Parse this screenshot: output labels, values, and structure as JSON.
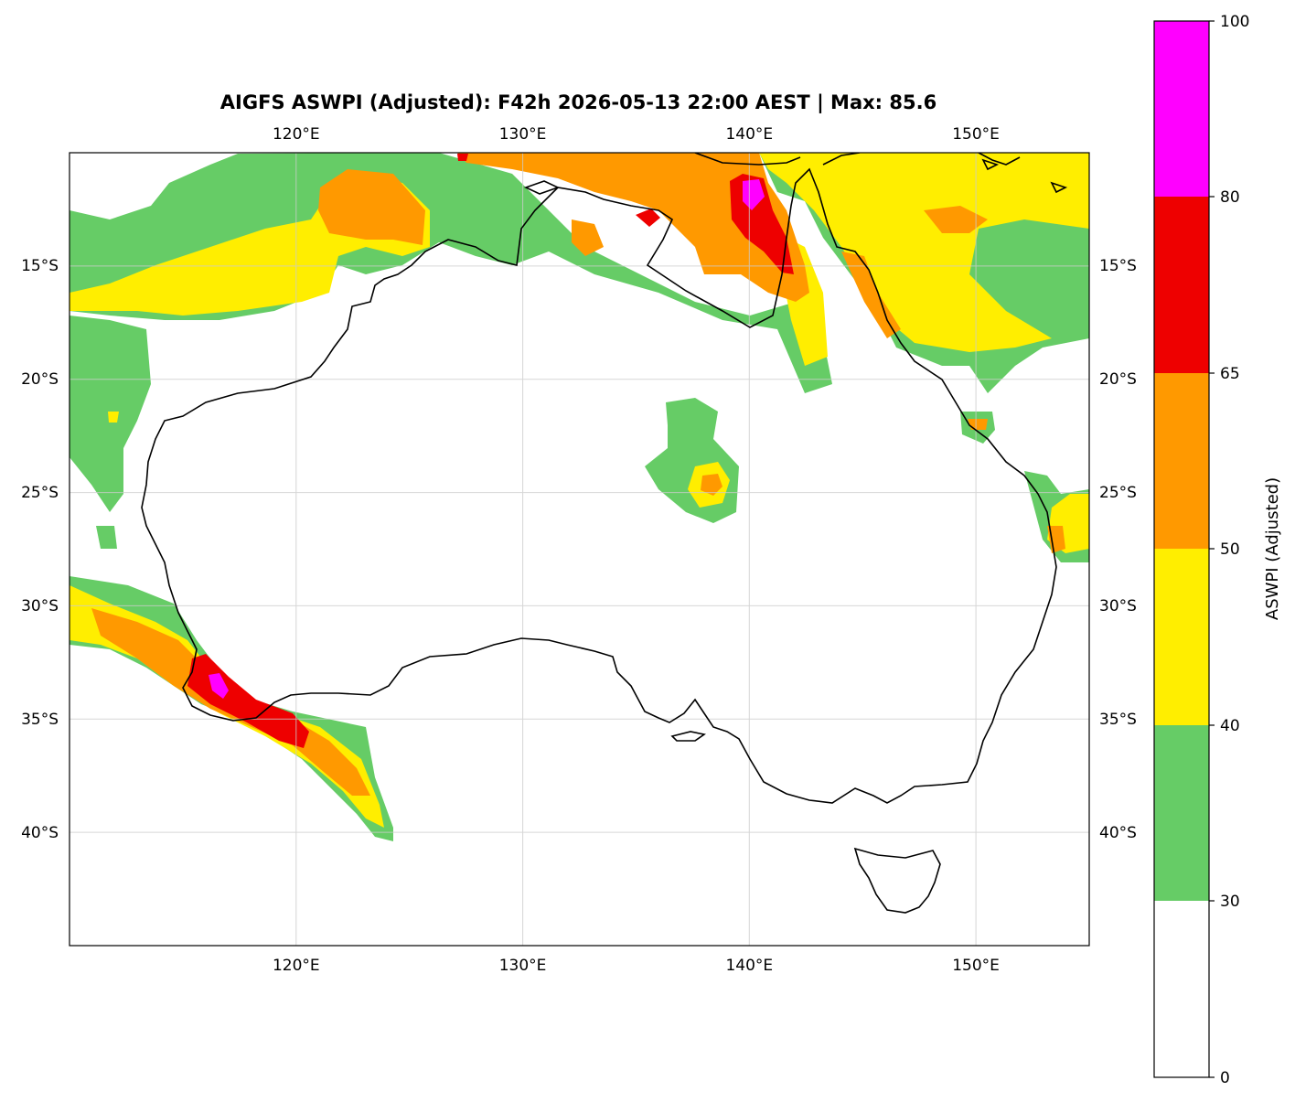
{
  "title": "AIGFS ASWPI (Adjusted): F42h 2026-05-13 22:00 AEST | Max: 85.6",
  "map": {
    "lon_range": [
      110,
      155
    ],
    "lat_range": [
      -45,
      -10
    ],
    "lon_ticks": [
      "120°E",
      "130°E",
      "140°E",
      "150°E"
    ],
    "lat_ticks": [
      "15°S",
      "20°S",
      "25°S",
      "30°S",
      "35°S",
      "40°S"
    ],
    "grid": true,
    "colors": {
      "30-40": "#66cc66",
      "40-50": "#ffee00",
      "50-65": "#ff9900",
      "65-80": "#ee0000",
      "80-100": "#ff00ff"
    }
  },
  "colorbar": {
    "label": "ASWPI (Adjusted)",
    "ticks": [
      "0",
      "30",
      "40",
      "50",
      "65",
      "80",
      "100"
    ],
    "bands": [
      {
        "range": "0-30",
        "color": "#ffffff"
      },
      {
        "range": "30-40",
        "color": "#66cc66"
      },
      {
        "range": "40-50",
        "color": "#ffee00"
      },
      {
        "range": "50-65",
        "color": "#ff9900"
      },
      {
        "range": "65-80",
        "color": "#ee0000"
      },
      {
        "range": "80-100",
        "color": "#ff00ff"
      }
    ]
  }
}
